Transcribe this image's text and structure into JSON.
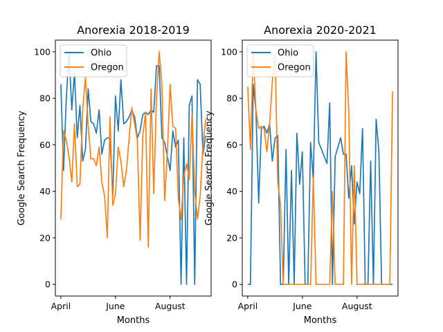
{
  "colors": {
    "ohio": "#1f77b4",
    "oregon": "#ff7f0e"
  },
  "chart_data": [
    {
      "type": "line",
      "title": "Anorexia 2018-2019",
      "xlabel": "Months",
      "ylabel": "Google Search Frequency",
      "ylim": [
        -5,
        105
      ],
      "yticks": [
        0,
        20,
        40,
        60,
        80,
        100
      ],
      "xlim": [
        -2,
        55
      ],
      "xticks": [
        {
          "pos": 0,
          "label": "April"
        },
        {
          "pos": 20,
          "label": "June"
        },
        {
          "pos": 40,
          "label": "August"
        }
      ],
      "legend": "top-left",
      "series": [
        {
          "name": "Ohio",
          "color_key": "ohio",
          "values": [
            86,
            49,
            80,
            100,
            75,
            91,
            63,
            77,
            53,
            58,
            84,
            70,
            69,
            65,
            75,
            56,
            62,
            63,
            63,
            38,
            81,
            66,
            88,
            69,
            70,
            72,
            75,
            72,
            63,
            66,
            73,
            74,
            73,
            75,
            74,
            94,
            94,
            63,
            61,
            55,
            49,
            66,
            59,
            62,
            0,
            63,
            0,
            77,
            81,
            0,
            88,
            86,
            56,
            64
          ]
        },
        {
          "name": "Oregon",
          "color_key": "oregon",
          "values": [
            28,
            66,
            62,
            55,
            44,
            69,
            42,
            43,
            75,
            89,
            68,
            54,
            54,
            51,
            59,
            44,
            38,
            20,
            72,
            34,
            39,
            59,
            53,
            42,
            49,
            63,
            76,
            69,
            62,
            19,
            64,
            74,
            16,
            84,
            39,
            80,
            100,
            86,
            36,
            57,
            86,
            68,
            67,
            37,
            28,
            46,
            52,
            45,
            73,
            40,
            28,
            38,
            60,
            71
          ]
        }
      ]
    },
    {
      "type": "line",
      "title": "Anorexia 2020-2021",
      "xlabel": "Months",
      "ylabel": "Google Search Frequency",
      "ylim": [
        -5,
        105
      ],
      "yticks": [
        0,
        20,
        40,
        60,
        80,
        100
      ],
      "xlim": [
        -2,
        55
      ],
      "xticks": [
        {
          "pos": 0,
          "label": "April"
        },
        {
          "pos": 20,
          "label": "June"
        },
        {
          "pos": 40,
          "label": "August"
        }
      ],
      "legend": "top-left",
      "series": [
        {
          "name": "Ohio",
          "color_key": "ohio",
          "values": [
            0,
            0,
            86,
            75,
            35,
            67,
            68,
            65,
            69,
            53,
            63,
            64,
            0,
            0,
            58,
            0,
            49,
            0,
            65,
            43,
            57,
            0,
            0,
            61,
            45,
            100,
            61,
            58,
            55,
            52,
            78,
            0,
            55,
            59,
            63,
            56,
            56,
            37,
            51,
            26,
            44,
            39,
            67,
            0,
            0,
            53,
            0,
            71,
            57,
            0,
            0,
            0,
            0,
            0
          ]
        },
        {
          "name": "Oregon",
          "color_key": "oregon",
          "values": [
            85,
            58,
            100,
            75,
            67,
            68,
            67,
            57,
            69,
            87,
            99,
            44,
            34,
            0,
            0,
            0,
            0,
            0,
            0,
            0,
            0,
            0,
            0,
            0,
            46,
            0,
            0,
            0,
            0,
            0,
            0,
            40,
            0,
            0,
            0,
            0,
            100,
            74,
            0,
            51,
            0,
            0,
            0,
            0,
            0,
            0,
            0,
            0,
            0,
            0,
            0,
            0,
            0,
            83
          ]
        }
      ]
    }
  ]
}
